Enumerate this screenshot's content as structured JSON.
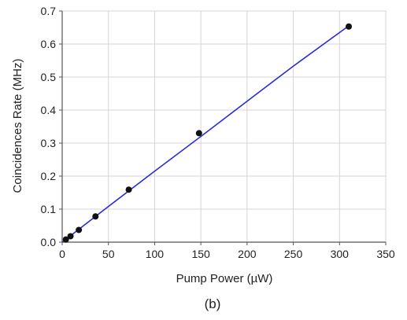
{
  "chart_data": {
    "type": "scatter",
    "title": "",
    "xlabel": "Pump Power (µW)",
    "ylabel": "Coincidences Rate (MHz)",
    "caption": "(b)",
    "xlim": [
      0,
      350
    ],
    "ylim": [
      0,
      0.7
    ],
    "x_ticks": [
      0,
      50,
      100,
      150,
      200,
      250,
      300,
      350
    ],
    "y_ticks": [
      0,
      0.1,
      0.2,
      0.3,
      0.4,
      0.5,
      0.6,
      0.7
    ],
    "x_tick_labels": [
      "0",
      "50",
      "100",
      "150",
      "200",
      "250",
      "300",
      "350"
    ],
    "y_tick_labels": [
      "0.0",
      "0.1",
      "0.2",
      "0.3",
      "0.4",
      "0.5",
      "0.6",
      "0.7"
    ],
    "grid": true,
    "series": [
      {
        "points": [
          {
            "x": 4,
            "y": 0.008
          },
          {
            "x": 9,
            "y": 0.018
          },
          {
            "x": 18,
            "y": 0.037
          },
          {
            "x": 36,
            "y": 0.078
          },
          {
            "x": 72,
            "y": 0.159
          },
          {
            "x": 148,
            "y": 0.33
          },
          {
            "x": 310,
            "y": 0.653
          }
        ],
        "marker_color": "#111111"
      }
    ],
    "fit_line": {
      "points": [
        {
          "x": 0,
          "y": 0.0
        },
        {
          "x": 50,
          "y": 0.108
        },
        {
          "x": 100,
          "y": 0.215
        },
        {
          "x": 150,
          "y": 0.32
        },
        {
          "x": 200,
          "y": 0.427
        },
        {
          "x": 250,
          "y": 0.533
        },
        {
          "x": 310,
          "y": 0.655
        }
      ],
      "color": "#2a2ad6"
    },
    "grid_color": "#d4d4d4",
    "axis_color": "#555555"
  }
}
